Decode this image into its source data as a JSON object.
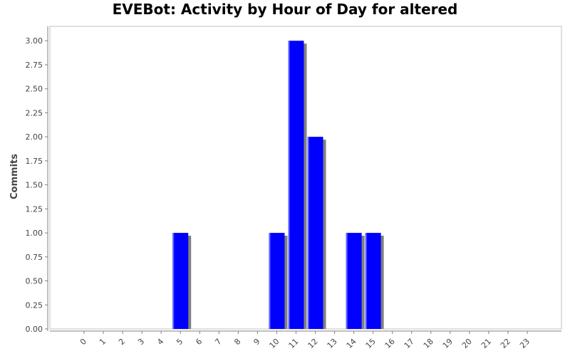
{
  "chart_data": {
    "type": "bar",
    "title": "EVEBot: Activity by Hour of Day for altered",
    "xlabel": "",
    "ylabel": "Commits",
    "categories": [
      "0",
      "1",
      "2",
      "3",
      "4",
      "5",
      "6",
      "7",
      "8",
      "9",
      "10",
      "11",
      "12",
      "13",
      "14",
      "15",
      "16",
      "17",
      "18",
      "19",
      "20",
      "21",
      "22",
      "23"
    ],
    "values": [
      0,
      0,
      0,
      0,
      0,
      1,
      0,
      0,
      0,
      0,
      1,
      3,
      2,
      0,
      1,
      1,
      0,
      0,
      0,
      0,
      0,
      0,
      0,
      0
    ],
    "yticks": [
      "0.00",
      "0.25",
      "0.50",
      "0.75",
      "1.00",
      "1.25",
      "1.50",
      "1.75",
      "2.00",
      "2.25",
      "2.50",
      "2.75",
      "3.00"
    ],
    "ylim": [
      0,
      3.15
    ],
    "grid": false,
    "colors": {
      "bar": "#0000ff",
      "bar_highlight": "#6666ff",
      "shadow": "#808080",
      "axis": "#808080"
    }
  }
}
